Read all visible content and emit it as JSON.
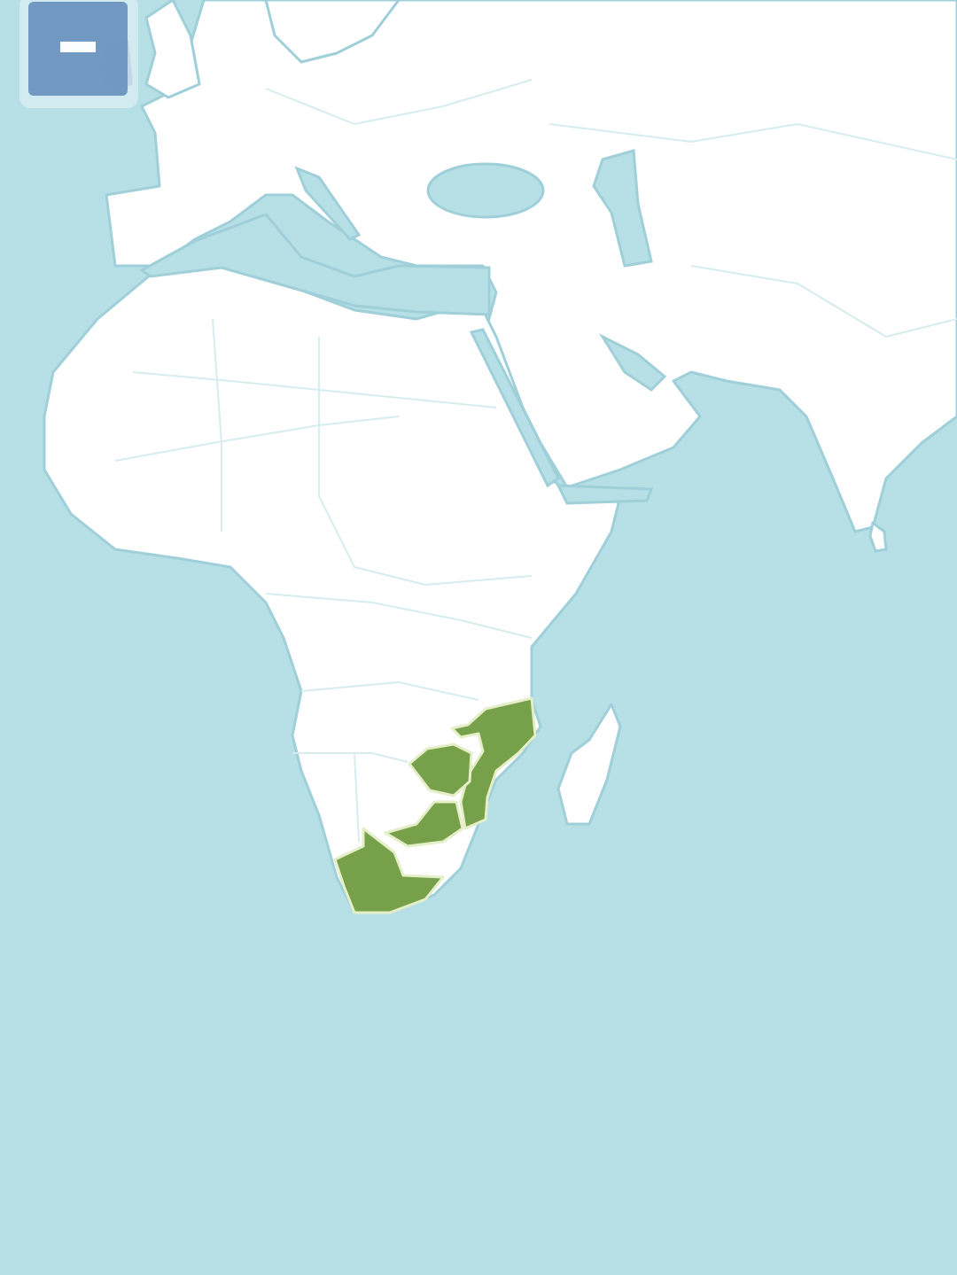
{
  "map": {
    "colors": {
      "ocean": "#b7dfe6",
      "land": "#ffffff",
      "border": "#d6ecef",
      "coast": "#9fcfd9",
      "highlight": "#76a04a",
      "highlight_border": "#e4efc8"
    }
  },
  "controls": {
    "zoom_out": {
      "icon": "minus-icon",
      "color": "#6c95c0"
    }
  }
}
